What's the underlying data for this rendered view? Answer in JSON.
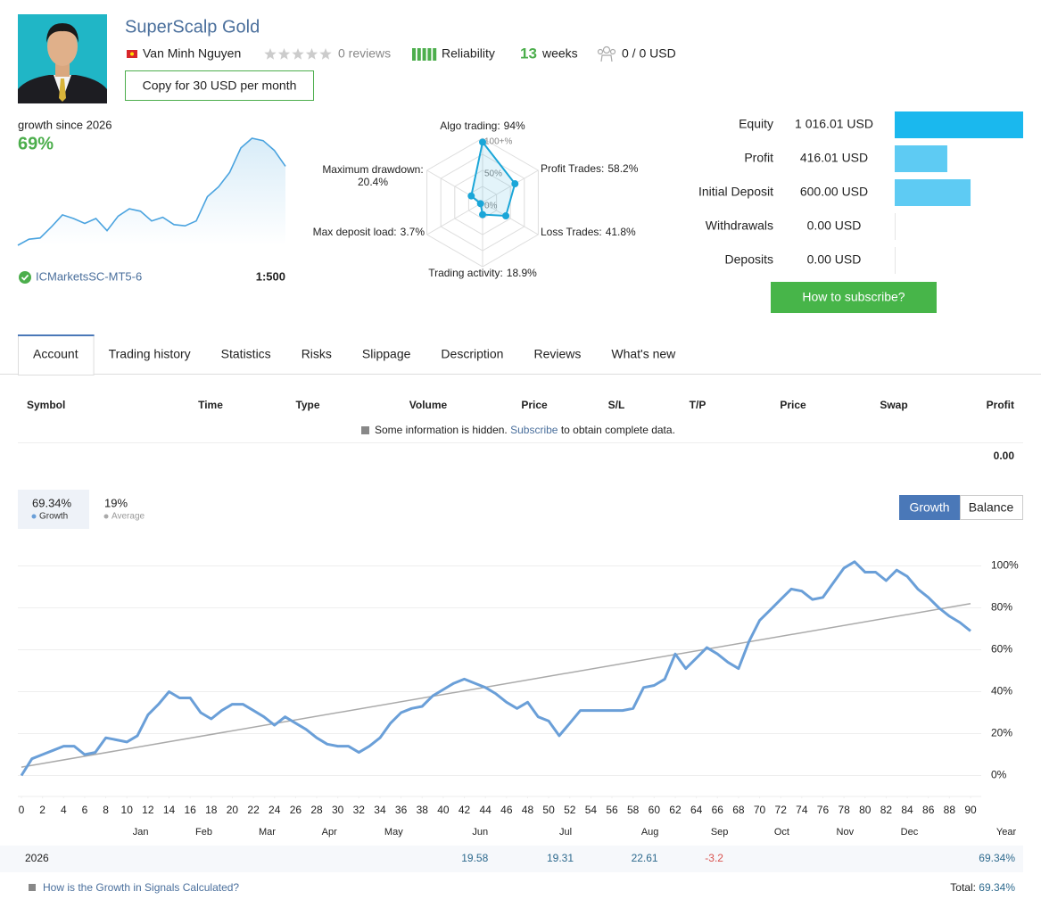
{
  "header": {
    "name": "SuperScalp Gold",
    "author": "Van Minh Nguyen",
    "reviews": "0 reviews",
    "reliability": "Reliability",
    "weeks_count": "13",
    "weeks": "weeks",
    "subscribers": "0 / 0 USD",
    "copy_button": "Copy for 30 USD per month"
  },
  "summary": {
    "growth_label": "growth since 2026",
    "growth": "69%",
    "broker": "ICMarketsSC-MT5-6",
    "leverage": "1:500",
    "chart": {
      "type": "line",
      "color": "#4aa3df",
      "values": [
        0,
        5,
        6,
        15,
        25,
        22,
        18,
        22,
        12,
        24,
        30,
        28,
        20,
        23,
        17,
        16,
        20,
        40,
        48,
        60,
        80,
        88,
        86,
        78,
        65
      ]
    }
  },
  "radar": {
    "type": "radar",
    "color": "#1aa6d8",
    "categories": [
      "Algo trading:",
      "Profit Trades:",
      "Loss Trades:",
      "Trading activity:",
      "Max deposit load:",
      "Maximum drawdown:"
    ],
    "values": [
      94,
      58.2,
      41.8,
      18.9,
      3.7,
      20.4
    ],
    "value_labels": [
      "94%",
      "58.2%",
      "41.8%",
      "18.9%",
      "3.7%",
      "20.4%"
    ],
    "rlim": [
      0,
      100
    ],
    "rticks": [
      {
        "value": 100,
        "label": "100+%"
      },
      {
        "value": 50,
        "label": "50%"
      },
      {
        "value": 0,
        "label": "0%"
      }
    ]
  },
  "balance": {
    "type": "bar",
    "categories": [
      "Equity",
      "Profit",
      "Initial Deposit",
      "Withdrawals",
      "Deposits"
    ],
    "values": [
      1016.01,
      416.01,
      600,
      0,
      0
    ],
    "value_labels": [
      "1 016.01 USD",
      "416.01 USD",
      "600.00 USD",
      "0.00 USD",
      "0.00 USD"
    ],
    "colors": [
      "#1ab8ee",
      "#5ecbf3",
      "#5ecbf3",
      "#5ecbf3",
      "#5ecbf3"
    ],
    "button": "How to subscribe?"
  },
  "tabs": {
    "items": [
      "Account",
      "Trading history",
      "Statistics",
      "Risks",
      "Slippage",
      "Description",
      "Reviews",
      "What's new"
    ],
    "active": 0
  },
  "positions": {
    "columns": [
      "Symbol",
      "Time",
      "Type",
      "Volume",
      "Price",
      "S/L",
      "T/P",
      "Price",
      "Swap",
      "Profit"
    ],
    "notice": "Some information is hidden.",
    "notice_link": "Subscribe",
    "notice_end": "to obtain complete data.",
    "total": "0.00"
  },
  "growth_chart": {
    "type": "line",
    "legend_values": [
      "69.34%",
      "19%"
    ],
    "buttons": [
      "Growth",
      "Balance"
    ],
    "active_button": 0,
    "series": [
      {
        "name": "Growth",
        "color": "#6a9fd8",
        "x": [
          0,
          1,
          2,
          3,
          4,
          5,
          6,
          7,
          8,
          9,
          10,
          11,
          12,
          13,
          14,
          15,
          16,
          17,
          18,
          19,
          20,
          21,
          22,
          23,
          24,
          25,
          26,
          27,
          28,
          29,
          30,
          31,
          32,
          33,
          34,
          35,
          36,
          37,
          38,
          39,
          40,
          41,
          42,
          43,
          44,
          45,
          46,
          47,
          48,
          49,
          50,
          51,
          52,
          53,
          54,
          55,
          56,
          57,
          58,
          59,
          60,
          61,
          62,
          63,
          64,
          65,
          66,
          67,
          68,
          69,
          70,
          71,
          72,
          73,
          74,
          75,
          76,
          77,
          78,
          79,
          80,
          81,
          82,
          83,
          84,
          85,
          86,
          87,
          88,
          89,
          90
        ],
        "values": [
          0,
          8,
          10,
          12,
          14,
          14,
          10,
          11,
          18,
          17,
          16,
          19,
          29,
          34,
          40,
          37,
          37,
          30,
          27,
          31,
          34,
          34,
          31,
          28,
          24,
          28,
          25,
          22,
          18,
          15,
          14,
          14,
          11,
          14,
          18,
          25,
          30,
          32,
          33,
          38,
          41,
          44,
          46,
          44,
          42,
          39,
          35,
          32,
          35,
          28,
          26,
          19,
          25,
          31,
          31,
          31,
          31,
          31,
          32,
          42,
          43,
          46,
          58,
          51,
          56,
          61,
          58,
          54,
          51,
          64,
          74,
          79,
          84,
          89,
          88,
          84,
          85,
          92,
          99,
          102,
          97,
          97,
          93,
          98,
          95,
          89,
          85,
          80,
          76,
          73,
          69
        ]
      },
      {
        "name": "Average",
        "color": "#aaaaaa",
        "x": [
          0,
          90
        ],
        "values": [
          4,
          82
        ]
      }
    ],
    "xlim": [
      0,
      90
    ],
    "xticks": [
      0,
      2,
      4,
      6,
      8,
      10,
      12,
      14,
      16,
      18,
      20,
      22,
      24,
      26,
      28,
      30,
      32,
      34,
      36,
      38,
      40,
      42,
      44,
      46,
      48,
      50,
      52,
      54,
      56,
      58,
      60,
      62,
      64,
      66,
      68,
      70,
      72,
      74,
      76,
      78,
      80,
      82,
      84,
      86,
      88,
      90
    ],
    "ylim": [
      -10,
      110
    ],
    "yticks": [
      {
        "value": 0,
        "label": "0%"
      },
      {
        "value": 20,
        "label": "20%"
      },
      {
        "value": 40,
        "label": "40%"
      },
      {
        "value": 60,
        "label": "60%"
      },
      {
        "value": 80,
        "label": "80%"
      },
      {
        "value": 100,
        "label": "100%"
      }
    ],
    "month_ticks": [
      {
        "value": 11.3,
        "label": "Jan"
      },
      {
        "value": 17.3,
        "label": "Feb"
      },
      {
        "value": 23.3,
        "label": "Mar"
      },
      {
        "value": 29.2,
        "label": "Apr"
      },
      {
        "value": 35.3,
        "label": "May"
      },
      {
        "value": 43.5,
        "label": "Jun"
      },
      {
        "value": 51.6,
        "label": "Jul"
      },
      {
        "value": 59.6,
        "label": "Aug"
      },
      {
        "value": 66.2,
        "label": "Sep"
      },
      {
        "value": 72.1,
        "label": "Oct"
      },
      {
        "value": 78.1,
        "label": "Nov"
      },
      {
        "value": 84.2,
        "label": "Dec"
      }
    ],
    "year_label": "Year",
    "grid": true
  },
  "year_table": {
    "year": "2026",
    "months": [
      null,
      null,
      null,
      null,
      null,
      19.58,
      19.31,
      22.61,
      -3.2,
      null,
      null,
      null
    ],
    "total": "69.34%"
  },
  "footer": {
    "link": "How is the Growth in Signals Calculated?",
    "total_label": "Total:",
    "total": "69.34%"
  }
}
